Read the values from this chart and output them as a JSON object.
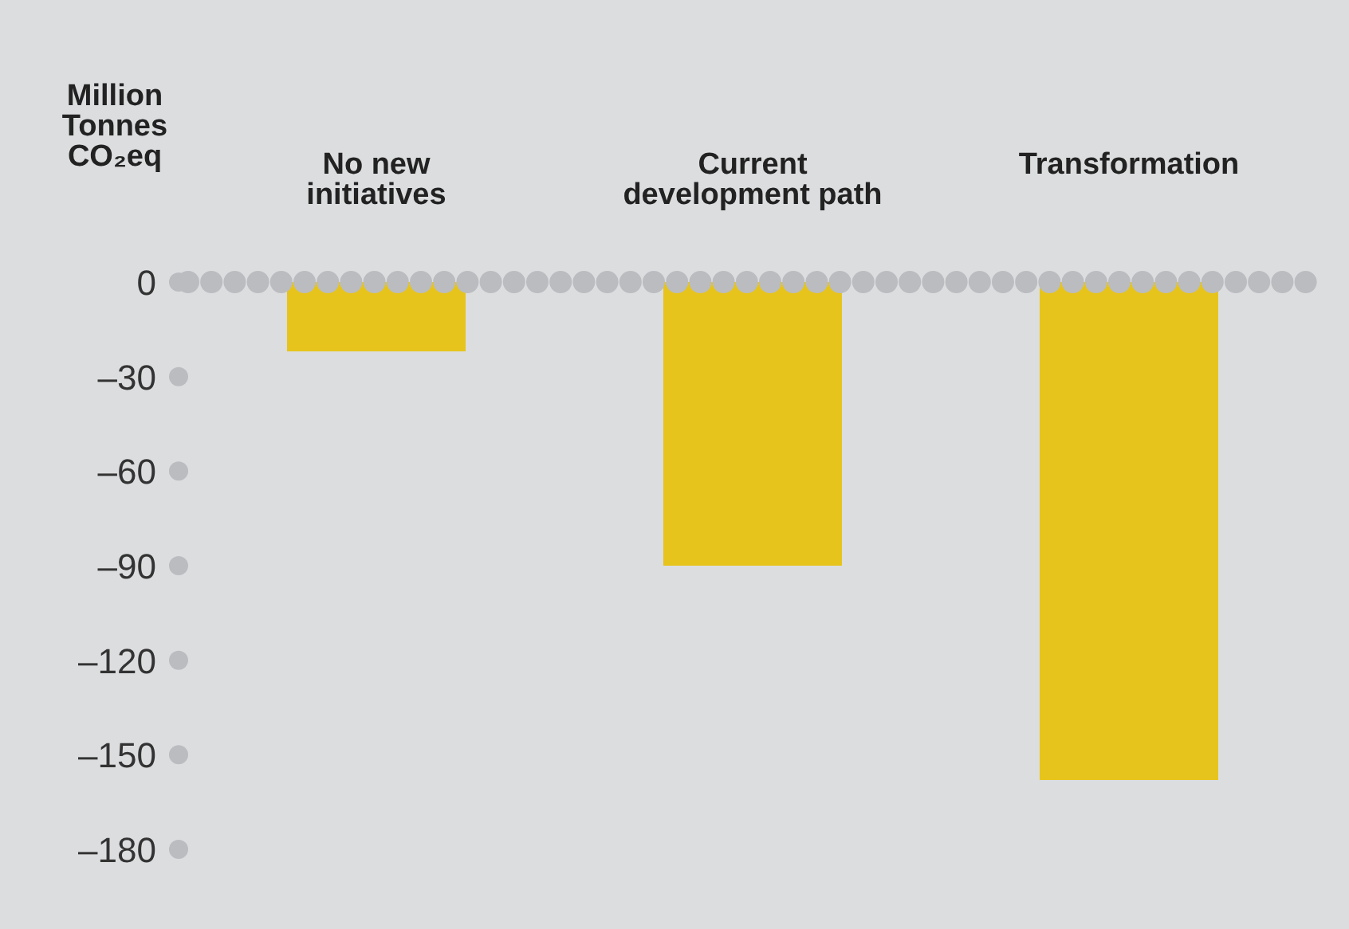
{
  "chart_data": {
    "type": "bar",
    "ylabel": "Million Tonnes CO₂eq",
    "categories": [
      "No new initiatives",
      "Current development path",
      "Transformation"
    ],
    "values": [
      -22,
      -90,
      -158
    ],
    "color": "#e6c41c",
    "ylim": [
      -180,
      0
    ],
    "yticks": [
      0,
      {
        "value": -30,
        "label": "–30"
      },
      {
        "value": -60,
        "label": "–60"
      },
      {
        "value": -90,
        "label": "–90"
      },
      {
        "value": -120,
        "label": "–120"
      },
      {
        "value": -150,
        "label": "–150"
      },
      {
        "value": -180,
        "label": "–180"
      }
    ]
  }
}
